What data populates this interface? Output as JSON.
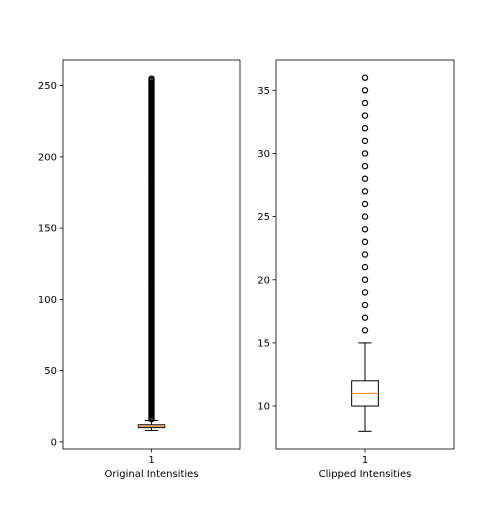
{
  "chart_data": [
    {
      "type": "boxplot",
      "xlabel": "Original Intensities",
      "categories": [
        "1"
      ],
      "ylim": [
        -5,
        268
      ],
      "yticks": [
        0,
        50,
        100,
        150,
        200,
        250
      ],
      "box": {
        "whisker_low": 8,
        "q1": 10,
        "median": 11,
        "q3": 12,
        "whisker_high": 15
      },
      "outliers": {
        "from": 16,
        "to": 255,
        "step": 1
      }
    },
    {
      "type": "boxplot",
      "xlabel": "Clipped Intensities",
      "categories": [
        "1"
      ],
      "ylim": [
        6.6,
        37.4
      ],
      "yticks": [
        10,
        15,
        20,
        25,
        30,
        35
      ],
      "box": {
        "whisker_low": 8,
        "q1": 10,
        "median": 11,
        "q3": 12,
        "whisker_high": 15
      },
      "outliers": {
        "from": 16,
        "to": 36,
        "step": 1
      }
    }
  ],
  "colors": {
    "median": "#ff7f0e",
    "box": "#000000",
    "flier": "#000000",
    "background": "#ffffff"
  }
}
